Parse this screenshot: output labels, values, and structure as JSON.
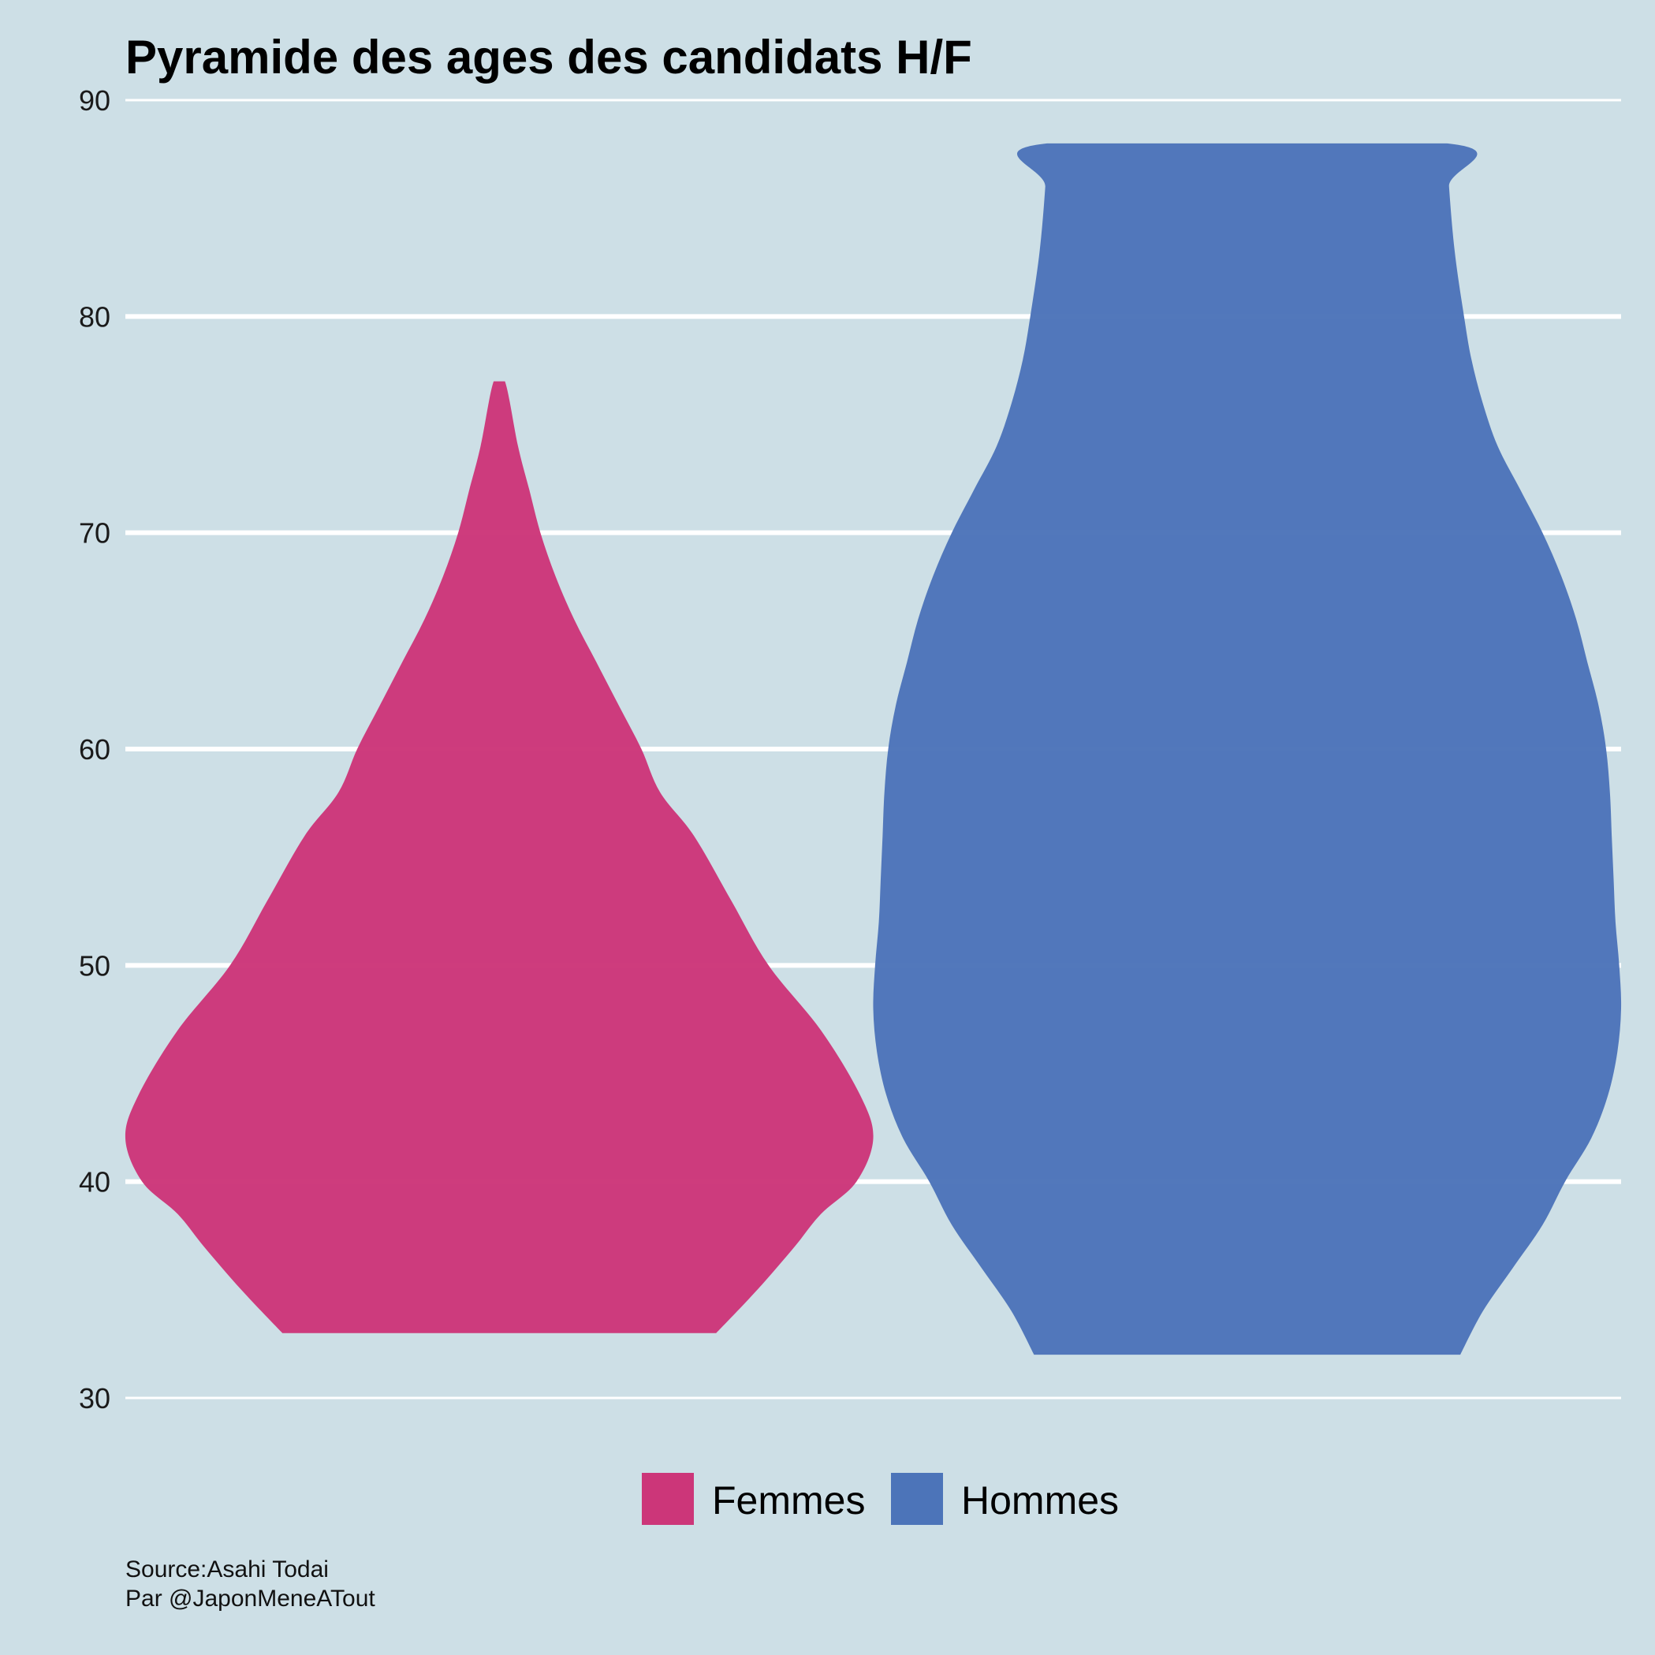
{
  "chart_data": {
    "type": "violin",
    "title": "Pyramide des ages des candidats H/F",
    "xlabel": "",
    "ylabel": "",
    "ylim": [
      30,
      90
    ],
    "yticks": [
      30,
      40,
      50,
      60,
      70,
      80,
      90
    ],
    "grid": true,
    "legend_position": "bottom",
    "series": [
      {
        "name": "Femmes",
        "color": "#cc3679",
        "min": 33,
        "max": 77,
        "profile": [
          [
            33,
            0.42
          ],
          [
            35,
            0.31
          ],
          [
            37,
            0.21
          ],
          [
            38.5,
            0.14
          ],
          [
            40,
            0.045
          ],
          [
            42,
            0.0
          ],
          [
            44,
            0.035
          ],
          [
            47,
            0.14
          ],
          [
            50,
            0.28
          ],
          [
            53,
            0.38
          ],
          [
            56,
            0.48
          ],
          [
            58,
            0.57
          ],
          [
            60,
            0.62
          ],
          [
            62,
            0.68
          ],
          [
            64,
            0.74
          ],
          [
            66,
            0.8
          ],
          [
            68,
            0.85
          ],
          [
            70,
            0.89
          ],
          [
            72,
            0.92
          ],
          [
            74,
            0.95
          ],
          [
            77,
            0.985
          ]
        ]
      },
      {
        "name": "Hommes",
        "color": "#4c74b9",
        "min": 32,
        "max": 88,
        "profile": [
          [
            32,
            0.43
          ],
          [
            34,
            0.37
          ],
          [
            36,
            0.29
          ],
          [
            38,
            0.21
          ],
          [
            40,
            0.15
          ],
          [
            42,
            0.08
          ],
          [
            44,
            0.035
          ],
          [
            46,
            0.01
          ],
          [
            48,
            0.0
          ],
          [
            50,
            0.005
          ],
          [
            52,
            0.015
          ],
          [
            54,
            0.02
          ],
          [
            56,
            0.025
          ],
          [
            58,
            0.03
          ],
          [
            60,
            0.04
          ],
          [
            62,
            0.06
          ],
          [
            64,
            0.09
          ],
          [
            66,
            0.12
          ],
          [
            68,
            0.16
          ],
          [
            70,
            0.21
          ],
          [
            72,
            0.27
          ],
          [
            74,
            0.33
          ],
          [
            76,
            0.37
          ],
          [
            78,
            0.4
          ],
          [
            80,
            0.42
          ],
          [
            83,
            0.445
          ],
          [
            86,
            0.46
          ],
          [
            88,
            0.465
          ]
        ]
      }
    ]
  },
  "caption": {
    "source": "Source:Asahi Todai",
    "author": "Par @JaponMeneATout"
  }
}
